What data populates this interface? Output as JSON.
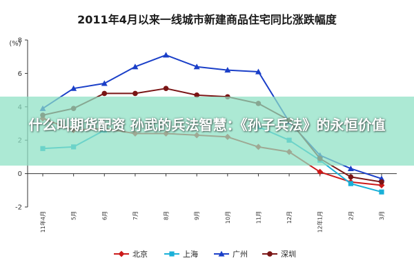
{
  "colors": {
    "beijing": "#cc1a1a",
    "shanghai": "#1ab0d8",
    "guangzhou": "#1a3fc8",
    "shenzhen": "#7a1515",
    "banner_bg": "#8ce1c3",
    "banner_text": "#ffffff",
    "axis": "#333333"
  },
  "overlay": {
    "text": "什么叫期货配资 孙武的兵法智慧：《孙子兵法》的永恒价值"
  },
  "chart_data": {
    "type": "line",
    "title": "2011年4月以来一线城市新建商品住宅同比涨跌幅度",
    "ylabel": "(%)",
    "xlabel": "",
    "ylim": [
      -2,
      8
    ],
    "yticks": [
      -2,
      0,
      2,
      4,
      6,
      8
    ],
    "categories": [
      "11年4月",
      "5月",
      "6月",
      "7月",
      "8月",
      "9月",
      "10月",
      "11月",
      "12月",
      "12年1月",
      "2月",
      "3月"
    ],
    "grid": false,
    "legend_position": "bottom",
    "series": [
      {
        "name": "北京",
        "color_key": "beijing",
        "marker": "diamond",
        "values": [
          3.3,
          2.6,
          2.7,
          2.4,
          2.4,
          2.3,
          2.2,
          1.6,
          1.3,
          0.1,
          -0.5,
          -0.7
        ]
      },
      {
        "name": "上海",
        "color_key": "shanghai",
        "marker": "square",
        "values": [
          1.5,
          1.6,
          2.6,
          null,
          null,
          null,
          null,
          2.8,
          2.0,
          0.8,
          -0.6,
          -1.1
        ]
      },
      {
        "name": "广州",
        "color_key": "guangzhou",
        "marker": "triangle",
        "values": [
          3.9,
          5.1,
          5.4,
          6.4,
          7.1,
          6.4,
          6.2,
          6.1,
          3.1,
          1.1,
          0.3,
          -0.3
        ]
      },
      {
        "name": "深圳",
        "color_key": "shenzhen",
        "marker": "circle",
        "values": [
          3.5,
          3.9,
          4.8,
          4.8,
          5.1,
          4.7,
          4.6,
          4.2,
          3.2,
          0.9,
          -0.2,
          -0.5
        ]
      }
    ]
  }
}
